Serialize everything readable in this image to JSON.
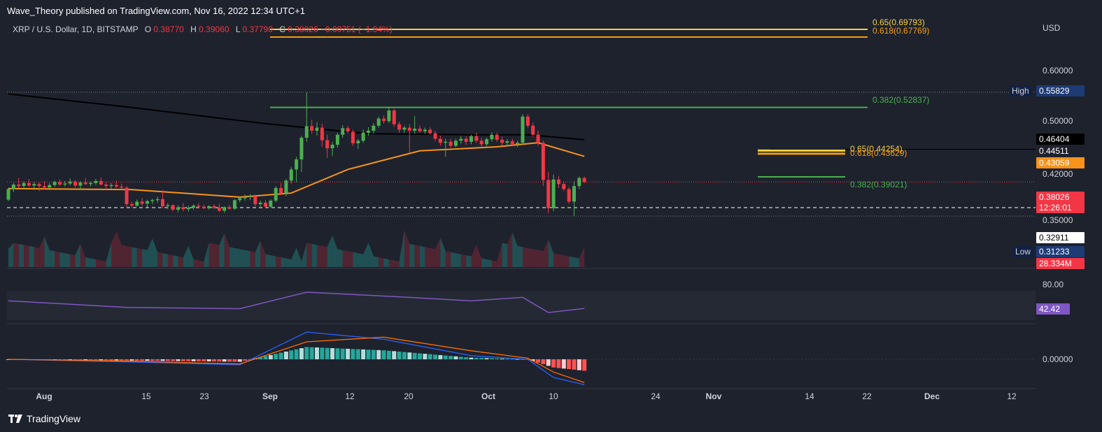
{
  "header": {
    "publisher": "Wave_Theory published on TradingView.com, Nov 16, 2022 12:34 UTC+1"
  },
  "legend": {
    "symbol": "XRP / U.S. Dollar, 1D, BITSTAMP",
    "o_label": "O",
    "o_value": "0.38770",
    "h_label": "H",
    "h_value": "0.39060",
    "l_label": "L",
    "l_value": "0.37790",
    "c_label": "C",
    "c_value": "0.38026",
    "change": "−0.00751 (−1.94%)"
  },
  "price_axis": {
    "currency": "USD",
    "ticks": [
      "0.60000",
      "0.50000",
      "0.42000",
      "0.35000"
    ],
    "high_label": "High",
    "high_value": "0.55829",
    "low_label": "Low",
    "low_value": "0.31233",
    "ma200_value": "0.46404",
    "level_value": "0.44511",
    "ma50_value": "0.43059",
    "last_price": "0.38026",
    "countdown": "12:26:01",
    "dashed_level": "0.32911",
    "volume_value": "28.334M"
  },
  "fib_labels": {
    "top_65": "0.65(0.69793)",
    "top_618": "0.618(0.67769)",
    "mid_382": "0.382(0.52837)",
    "low_65": "0.65(0.44254)",
    "low_618": "0.618(0.43629)",
    "low_382": "0.382(0.39021)"
  },
  "rsi": {
    "tick": "80.00",
    "value": "42.42"
  },
  "macd": {
    "tick": "0.00000"
  },
  "time_axis": [
    {
      "label": "Aug",
      "bold": true
    },
    {
      "label": "15",
      "bold": false
    },
    {
      "label": "23",
      "bold": false
    },
    {
      "label": "Sep",
      "bold": true
    },
    {
      "label": "12",
      "bold": false
    },
    {
      "label": "20",
      "bold": false
    },
    {
      "label": "Oct",
      "bold": true
    },
    {
      "label": "10",
      "bold": false
    },
    {
      "label": "24",
      "bold": false
    },
    {
      "label": "Nov",
      "bold": true
    },
    {
      "label": "14",
      "bold": false
    },
    {
      "label": "22",
      "bold": false
    },
    {
      "label": "Dec",
      "bold": true
    },
    {
      "label": "12",
      "bold": false
    }
  ],
  "brand": "TradingView",
  "colors": {
    "up": "#4caf50",
    "down": "#f23645",
    "ma200": "#000000",
    "ma50": "#f7931a",
    "fib_gold": "#f5d142",
    "fib_orange": "#f59e0b",
    "fib_green": "#4caf50",
    "rsi": "#7e57c2",
    "macd": "#2962ff",
    "signal": "#ff6d00",
    "bg": "#1e222d"
  },
  "chart_data": {
    "type": "candlestick",
    "symbol": "XRP / U.S. Dollar, 1D, BITSTAMP",
    "x_range": [
      "2022-07-27",
      "2022-11-16"
    ],
    "y_unit": "USD",
    "ohlc": [
      {
        "d": "2022-07-27",
        "o": 0.345,
        "h": 0.368,
        "l": 0.342,
        "c": 0.366
      },
      {
        "d": "2022-07-28",
        "o": 0.366,
        "h": 0.378,
        "l": 0.36,
        "c": 0.375
      },
      {
        "d": "2022-07-29",
        "o": 0.375,
        "h": 0.388,
        "l": 0.368,
        "c": 0.372
      },
      {
        "d": "2022-07-30",
        "o": 0.372,
        "h": 0.382,
        "l": 0.366,
        "c": 0.378
      },
      {
        "d": "2022-07-31",
        "o": 0.378,
        "h": 0.386,
        "l": 0.37,
        "c": 0.373
      },
      {
        "d": "2022-08-01",
        "o": 0.373,
        "h": 0.38,
        "l": 0.364,
        "c": 0.376
      },
      {
        "d": "2022-08-02",
        "o": 0.376,
        "h": 0.379,
        "l": 0.362,
        "c": 0.372
      },
      {
        "d": "2022-08-03",
        "o": 0.372,
        "h": 0.381,
        "l": 0.365,
        "c": 0.369
      },
      {
        "d": "2022-08-04",
        "o": 0.369,
        "h": 0.378,
        "l": 0.364,
        "c": 0.374
      },
      {
        "d": "2022-08-05",
        "o": 0.374,
        "h": 0.383,
        "l": 0.37,
        "c": 0.38
      },
      {
        "d": "2022-08-06",
        "o": 0.38,
        "h": 0.385,
        "l": 0.372,
        "c": 0.375
      },
      {
        "d": "2022-08-07",
        "o": 0.375,
        "h": 0.382,
        "l": 0.371,
        "c": 0.377
      },
      {
        "d": "2022-08-08",
        "o": 0.377,
        "h": 0.387,
        "l": 0.373,
        "c": 0.381
      },
      {
        "d": "2022-08-09",
        "o": 0.381,
        "h": 0.384,
        "l": 0.369,
        "c": 0.373
      },
      {
        "d": "2022-08-10",
        "o": 0.373,
        "h": 0.382,
        "l": 0.366,
        "c": 0.379
      },
      {
        "d": "2022-08-11",
        "o": 0.379,
        "h": 0.388,
        "l": 0.374,
        "c": 0.376
      },
      {
        "d": "2022-08-12",
        "o": 0.376,
        "h": 0.381,
        "l": 0.371,
        "c": 0.378
      },
      {
        "d": "2022-08-13",
        "o": 0.378,
        "h": 0.386,
        "l": 0.374,
        "c": 0.382
      },
      {
        "d": "2022-08-14",
        "o": 0.382,
        "h": 0.389,
        "l": 0.373,
        "c": 0.375
      },
      {
        "d": "2022-08-15",
        "o": 0.375,
        "h": 0.38,
        "l": 0.363,
        "c": 0.372
      },
      {
        "d": "2022-08-16",
        "o": 0.372,
        "h": 0.378,
        "l": 0.366,
        "c": 0.374
      },
      {
        "d": "2022-08-17",
        "o": 0.374,
        "h": 0.383,
        "l": 0.368,
        "c": 0.371
      },
      {
        "d": "2022-08-18",
        "o": 0.371,
        "h": 0.377,
        "l": 0.366,
        "c": 0.369
      },
      {
        "d": "2022-08-19",
        "o": 0.369,
        "h": 0.372,
        "l": 0.33,
        "c": 0.336
      },
      {
        "d": "2022-08-20",
        "o": 0.336,
        "h": 0.341,
        "l": 0.329,
        "c": 0.333
      },
      {
        "d": "2022-08-21",
        "o": 0.333,
        "h": 0.345,
        "l": 0.331,
        "c": 0.341
      },
      {
        "d": "2022-08-22",
        "o": 0.341,
        "h": 0.348,
        "l": 0.332,
        "c": 0.337
      },
      {
        "d": "2022-08-23",
        "o": 0.337,
        "h": 0.345,
        "l": 0.33,
        "c": 0.342
      },
      {
        "d": "2022-08-24",
        "o": 0.342,
        "h": 0.347,
        "l": 0.336,
        "c": 0.344
      },
      {
        "d": "2022-08-25",
        "o": 0.344,
        "h": 0.351,
        "l": 0.339,
        "c": 0.346
      },
      {
        "d": "2022-08-26",
        "o": 0.346,
        "h": 0.364,
        "l": 0.328,
        "c": 0.332
      },
      {
        "d": "2022-08-27",
        "o": 0.332,
        "h": 0.338,
        "l": 0.326,
        "c": 0.334
      },
      {
        "d": "2022-08-28",
        "o": 0.334,
        "h": 0.336,
        "l": 0.322,
        "c": 0.325
      },
      {
        "d": "2022-08-29",
        "o": 0.325,
        "h": 0.334,
        "l": 0.32,
        "c": 0.33
      },
      {
        "d": "2022-08-30",
        "o": 0.33,
        "h": 0.338,
        "l": 0.322,
        "c": 0.326
      },
      {
        "d": "2022-08-31",
        "o": 0.326,
        "h": 0.333,
        "l": 0.321,
        "c": 0.329
      },
      {
        "d": "2022-09-01",
        "o": 0.329,
        "h": 0.336,
        "l": 0.325,
        "c": 0.333
      },
      {
        "d": "2022-09-02",
        "o": 0.333,
        "h": 0.338,
        "l": 0.327,
        "c": 0.331
      },
      {
        "d": "2022-09-03",
        "o": 0.331,
        "h": 0.335,
        "l": 0.326,
        "c": 0.328
      },
      {
        "d": "2022-09-04",
        "o": 0.328,
        "h": 0.334,
        "l": 0.325,
        "c": 0.332
      },
      {
        "d": "2022-09-05",
        "o": 0.332,
        "h": 0.336,
        "l": 0.326,
        "c": 0.329
      },
      {
        "d": "2022-09-06",
        "o": 0.329,
        "h": 0.337,
        "l": 0.32,
        "c": 0.323
      },
      {
        "d": "2022-09-07",
        "o": 0.323,
        "h": 0.332,
        "l": 0.319,
        "c": 0.33
      },
      {
        "d": "2022-09-08",
        "o": 0.33,
        "h": 0.334,
        "l": 0.325,
        "c": 0.327
      },
      {
        "d": "2022-09-09",
        "o": 0.327,
        "h": 0.346,
        "l": 0.325,
        "c": 0.344
      },
      {
        "d": "2022-09-10",
        "o": 0.344,
        "h": 0.352,
        "l": 0.34,
        "c": 0.348
      },
      {
        "d": "2022-09-11",
        "o": 0.348,
        "h": 0.355,
        "l": 0.343,
        "c": 0.35
      },
      {
        "d": "2022-09-12",
        "o": 0.35,
        "h": 0.356,
        "l": 0.344,
        "c": 0.352
      },
      {
        "d": "2022-09-13",
        "o": 0.352,
        "h": 0.355,
        "l": 0.332,
        "c": 0.336
      },
      {
        "d": "2022-09-14",
        "o": 0.336,
        "h": 0.343,
        "l": 0.331,
        "c": 0.339
      },
      {
        "d": "2022-09-15",
        "o": 0.339,
        "h": 0.344,
        "l": 0.328,
        "c": 0.331
      },
      {
        "d": "2022-09-16",
        "o": 0.331,
        "h": 0.346,
        "l": 0.329,
        "c": 0.343
      },
      {
        "d": "2022-09-17",
        "o": 0.343,
        "h": 0.372,
        "l": 0.34,
        "c": 0.368
      },
      {
        "d": "2022-09-18",
        "o": 0.368,
        "h": 0.378,
        "l": 0.354,
        "c": 0.358
      },
      {
        "d": "2022-09-19",
        "o": 0.358,
        "h": 0.386,
        "l": 0.352,
        "c": 0.383
      },
      {
        "d": "2022-09-20",
        "o": 0.383,
        "h": 0.41,
        "l": 0.377,
        "c": 0.405
      },
      {
        "d": "2022-09-21",
        "o": 0.405,
        "h": 0.43,
        "l": 0.38,
        "c": 0.425
      },
      {
        "d": "2022-09-22",
        "o": 0.425,
        "h": 0.472,
        "l": 0.4,
        "c": 0.468
      },
      {
        "d": "2022-09-23",
        "o": 0.468,
        "h": 0.558,
        "l": 0.46,
        "c": 0.491
      },
      {
        "d": "2022-09-24",
        "o": 0.491,
        "h": 0.504,
        "l": 0.476,
        "c": 0.482
      },
      {
        "d": "2022-09-25",
        "o": 0.482,
        "h": 0.499,
        "l": 0.472,
        "c": 0.488
      },
      {
        "d": "2022-09-26",
        "o": 0.488,
        "h": 0.496,
        "l": 0.45,
        "c": 0.463
      },
      {
        "d": "2022-09-27",
        "o": 0.463,
        "h": 0.474,
        "l": 0.428,
        "c": 0.447
      },
      {
        "d": "2022-09-28",
        "o": 0.447,
        "h": 0.46,
        "l": 0.432,
        "c": 0.454
      },
      {
        "d": "2022-09-29",
        "o": 0.454,
        "h": 0.478,
        "l": 0.448,
        "c": 0.474
      },
      {
        "d": "2022-09-30",
        "o": 0.474,
        "h": 0.493,
        "l": 0.468,
        "c": 0.487
      },
      {
        "d": "2022-10-01",
        "o": 0.487,
        "h": 0.492,
        "l": 0.476,
        "c": 0.48
      },
      {
        "d": "2022-10-02",
        "o": 0.48,
        "h": 0.484,
        "l": 0.452,
        "c": 0.457
      },
      {
        "d": "2022-10-03",
        "o": 0.457,
        "h": 0.466,
        "l": 0.446,
        "c": 0.462
      },
      {
        "d": "2022-10-04",
        "o": 0.462,
        "h": 0.484,
        "l": 0.458,
        "c": 0.478
      },
      {
        "d": "2022-10-05",
        "o": 0.478,
        "h": 0.489,
        "l": 0.472,
        "c": 0.482
      },
      {
        "d": "2022-10-06",
        "o": 0.482,
        "h": 0.497,
        "l": 0.476,
        "c": 0.492
      },
      {
        "d": "2022-10-07",
        "o": 0.492,
        "h": 0.51,
        "l": 0.488,
        "c": 0.506
      },
      {
        "d": "2022-10-08",
        "o": 0.506,
        "h": 0.512,
        "l": 0.496,
        "c": 0.501
      },
      {
        "d": "2022-10-09",
        "o": 0.501,
        "h": 0.53,
        "l": 0.497,
        "c": 0.522
      },
      {
        "d": "2022-10-10",
        "o": 0.522,
        "h": 0.526,
        "l": 0.49,
        "c": 0.495
      },
      {
        "d": "2022-10-11",
        "o": 0.495,
        "h": 0.5,
        "l": 0.478,
        "c": 0.484
      },
      {
        "d": "2022-10-12",
        "o": 0.484,
        "h": 0.492,
        "l": 0.478,
        "c": 0.488
      },
      {
        "d": "2022-10-13",
        "o": 0.488,
        "h": 0.495,
        "l": 0.438,
        "c": 0.482
      },
      {
        "d": "2022-10-14",
        "o": 0.482,
        "h": 0.511,
        "l": 0.476,
        "c": 0.486
      },
      {
        "d": "2022-10-15",
        "o": 0.486,
        "h": 0.492,
        "l": 0.478,
        "c": 0.481
      },
      {
        "d": "2022-10-16",
        "o": 0.481,
        "h": 0.488,
        "l": 0.476,
        "c": 0.484
      },
      {
        "d": "2022-10-17",
        "o": 0.484,
        "h": 0.489,
        "l": 0.474,
        "c": 0.477
      },
      {
        "d": "2022-10-18",
        "o": 0.477,
        "h": 0.482,
        "l": 0.462,
        "c": 0.466
      },
      {
        "d": "2022-10-19",
        "o": 0.466,
        "h": 0.472,
        "l": 0.452,
        "c": 0.458
      },
      {
        "d": "2022-10-20",
        "o": 0.458,
        "h": 0.466,
        "l": 0.43,
        "c": 0.46
      },
      {
        "d": "2022-10-21",
        "o": 0.46,
        "h": 0.466,
        "l": 0.448,
        "c": 0.452
      },
      {
        "d": "2022-10-22",
        "o": 0.452,
        "h": 0.466,
        "l": 0.449,
        "c": 0.462
      },
      {
        "d": "2022-10-23",
        "o": 0.462,
        "h": 0.472,
        "l": 0.456,
        "c": 0.466
      },
      {
        "d": "2022-10-24",
        "o": 0.466,
        "h": 0.471,
        "l": 0.454,
        "c": 0.46
      },
      {
        "d": "2022-10-25",
        "o": 0.46,
        "h": 0.474,
        "l": 0.455,
        "c": 0.471
      },
      {
        "d": "2022-10-26",
        "o": 0.471,
        "h": 0.478,
        "l": 0.458,
        "c": 0.462
      },
      {
        "d": "2022-10-27",
        "o": 0.462,
        "h": 0.468,
        "l": 0.45,
        "c": 0.455
      },
      {
        "d": "2022-10-28",
        "o": 0.455,
        "h": 0.468,
        "l": 0.451,
        "c": 0.465
      },
      {
        "d": "2022-10-29",
        "o": 0.465,
        "h": 0.479,
        "l": 0.46,
        "c": 0.474
      },
      {
        "d": "2022-10-30",
        "o": 0.474,
        "h": 0.478,
        "l": 0.46,
        "c": 0.464
      },
      {
        "d": "2022-10-31",
        "o": 0.464,
        "h": 0.47,
        "l": 0.452,
        "c": 0.458
      },
      {
        "d": "2022-11-01",
        "o": 0.458,
        "h": 0.465,
        "l": 0.452,
        "c": 0.461
      },
      {
        "d": "2022-11-02",
        "o": 0.461,
        "h": 0.466,
        "l": 0.451,
        "c": 0.455
      },
      {
        "d": "2022-11-03",
        "o": 0.455,
        "h": 0.462,
        "l": 0.449,
        "c": 0.458
      },
      {
        "d": "2022-11-04",
        "o": 0.458,
        "h": 0.515,
        "l": 0.455,
        "c": 0.51
      },
      {
        "d": "2022-11-05",
        "o": 0.51,
        "h": 0.515,
        "l": 0.488,
        "c": 0.492
      },
      {
        "d": "2022-11-06",
        "o": 0.492,
        "h": 0.498,
        "l": 0.47,
        "c": 0.474
      },
      {
        "d": "2022-11-07",
        "o": 0.474,
        "h": 0.482,
        "l": 0.452,
        "c": 0.458
      },
      {
        "d": "2022-11-08",
        "o": 0.458,
        "h": 0.462,
        "l": 0.372,
        "c": 0.384
      },
      {
        "d": "2022-11-09",
        "o": 0.384,
        "h": 0.4,
        "l": 0.318,
        "c": 0.328
      },
      {
        "d": "2022-11-10",
        "o": 0.328,
        "h": 0.395,
        "l": 0.322,
        "c": 0.385
      },
      {
        "d": "2022-11-11",
        "o": 0.385,
        "h": 0.392,
        "l": 0.368,
        "c": 0.376
      },
      {
        "d": "2022-11-12",
        "o": 0.376,
        "h": 0.381,
        "l": 0.362,
        "c": 0.366
      },
      {
        "d": "2022-11-13",
        "o": 0.366,
        "h": 0.37,
        "l": 0.337,
        "c": 0.341
      },
      {
        "d": "2022-11-14",
        "o": 0.341,
        "h": 0.382,
        "l": 0.312,
        "c": 0.372
      },
      {
        "d": "2022-11-15",
        "o": 0.372,
        "h": 0.391,
        "l": 0.366,
        "c": 0.388
      },
      {
        "d": "2022-11-16",
        "o": 0.388,
        "h": 0.391,
        "l": 0.378,
        "c": 0.38
      }
    ],
    "ma200": [
      [
        "2022-07-27",
        0.555
      ],
      [
        "2022-08-20",
        0.528
      ],
      [
        "2022-09-15",
        0.496
      ],
      [
        "2022-10-05",
        0.476
      ],
      [
        "2022-10-25",
        0.474
      ],
      [
        "2022-11-05",
        0.474
      ],
      [
        "2022-11-16",
        0.464
      ]
    ],
    "ma50": [
      [
        "2022-07-27",
        0.367
      ],
      [
        "2022-08-20",
        0.365
      ],
      [
        "2022-09-10",
        0.35
      ],
      [
        "2022-09-20",
        0.358
      ],
      [
        "2022-10-01",
        0.405
      ],
      [
        "2022-10-15",
        0.442
      ],
      [
        "2022-10-30",
        0.45
      ],
      [
        "2022-11-07",
        0.458
      ],
      [
        "2022-11-16",
        0.431
      ]
    ],
    "fib_levels": [
      {
        "label": "0.65(0.69793)",
        "value": 0.69793
      },
      {
        "label": "0.618(0.67769)",
        "value": 0.67769
      },
      {
        "label": "0.382(0.52837)",
        "value": 0.52837
      },
      {
        "label": "0.65(0.44254)",
        "value": 0.44254
      },
      {
        "label": "0.618(0.43629)",
        "value": 0.43629
      },
      {
        "label": "0.382(0.39021)",
        "value": 0.39021
      }
    ],
    "rsi": [
      [
        "2022-07-27",
        60
      ],
      [
        "2022-08-19",
        45
      ],
      [
        "2022-09-10",
        42
      ],
      [
        "2022-09-23",
        80
      ],
      [
        "2022-10-10",
        70
      ],
      [
        "2022-10-25",
        60
      ],
      [
        "2022-11-04",
        68
      ],
      [
        "2022-11-09",
        33
      ],
      [
        "2022-11-16",
        42.42
      ]
    ],
    "macd": [
      [
        "2022-07-27",
        0.0
      ],
      [
        "2022-08-20",
        -0.003
      ],
      [
        "2022-09-10",
        -0.006
      ],
      [
        "2022-09-23",
        0.03
      ],
      [
        "2022-10-08",
        0.022
      ],
      [
        "2022-10-25",
        0.004
      ],
      [
        "2022-11-05",
        0.0
      ],
      [
        "2022-11-10",
        -0.02
      ],
      [
        "2022-11-16",
        -0.028
      ]
    ]
  }
}
